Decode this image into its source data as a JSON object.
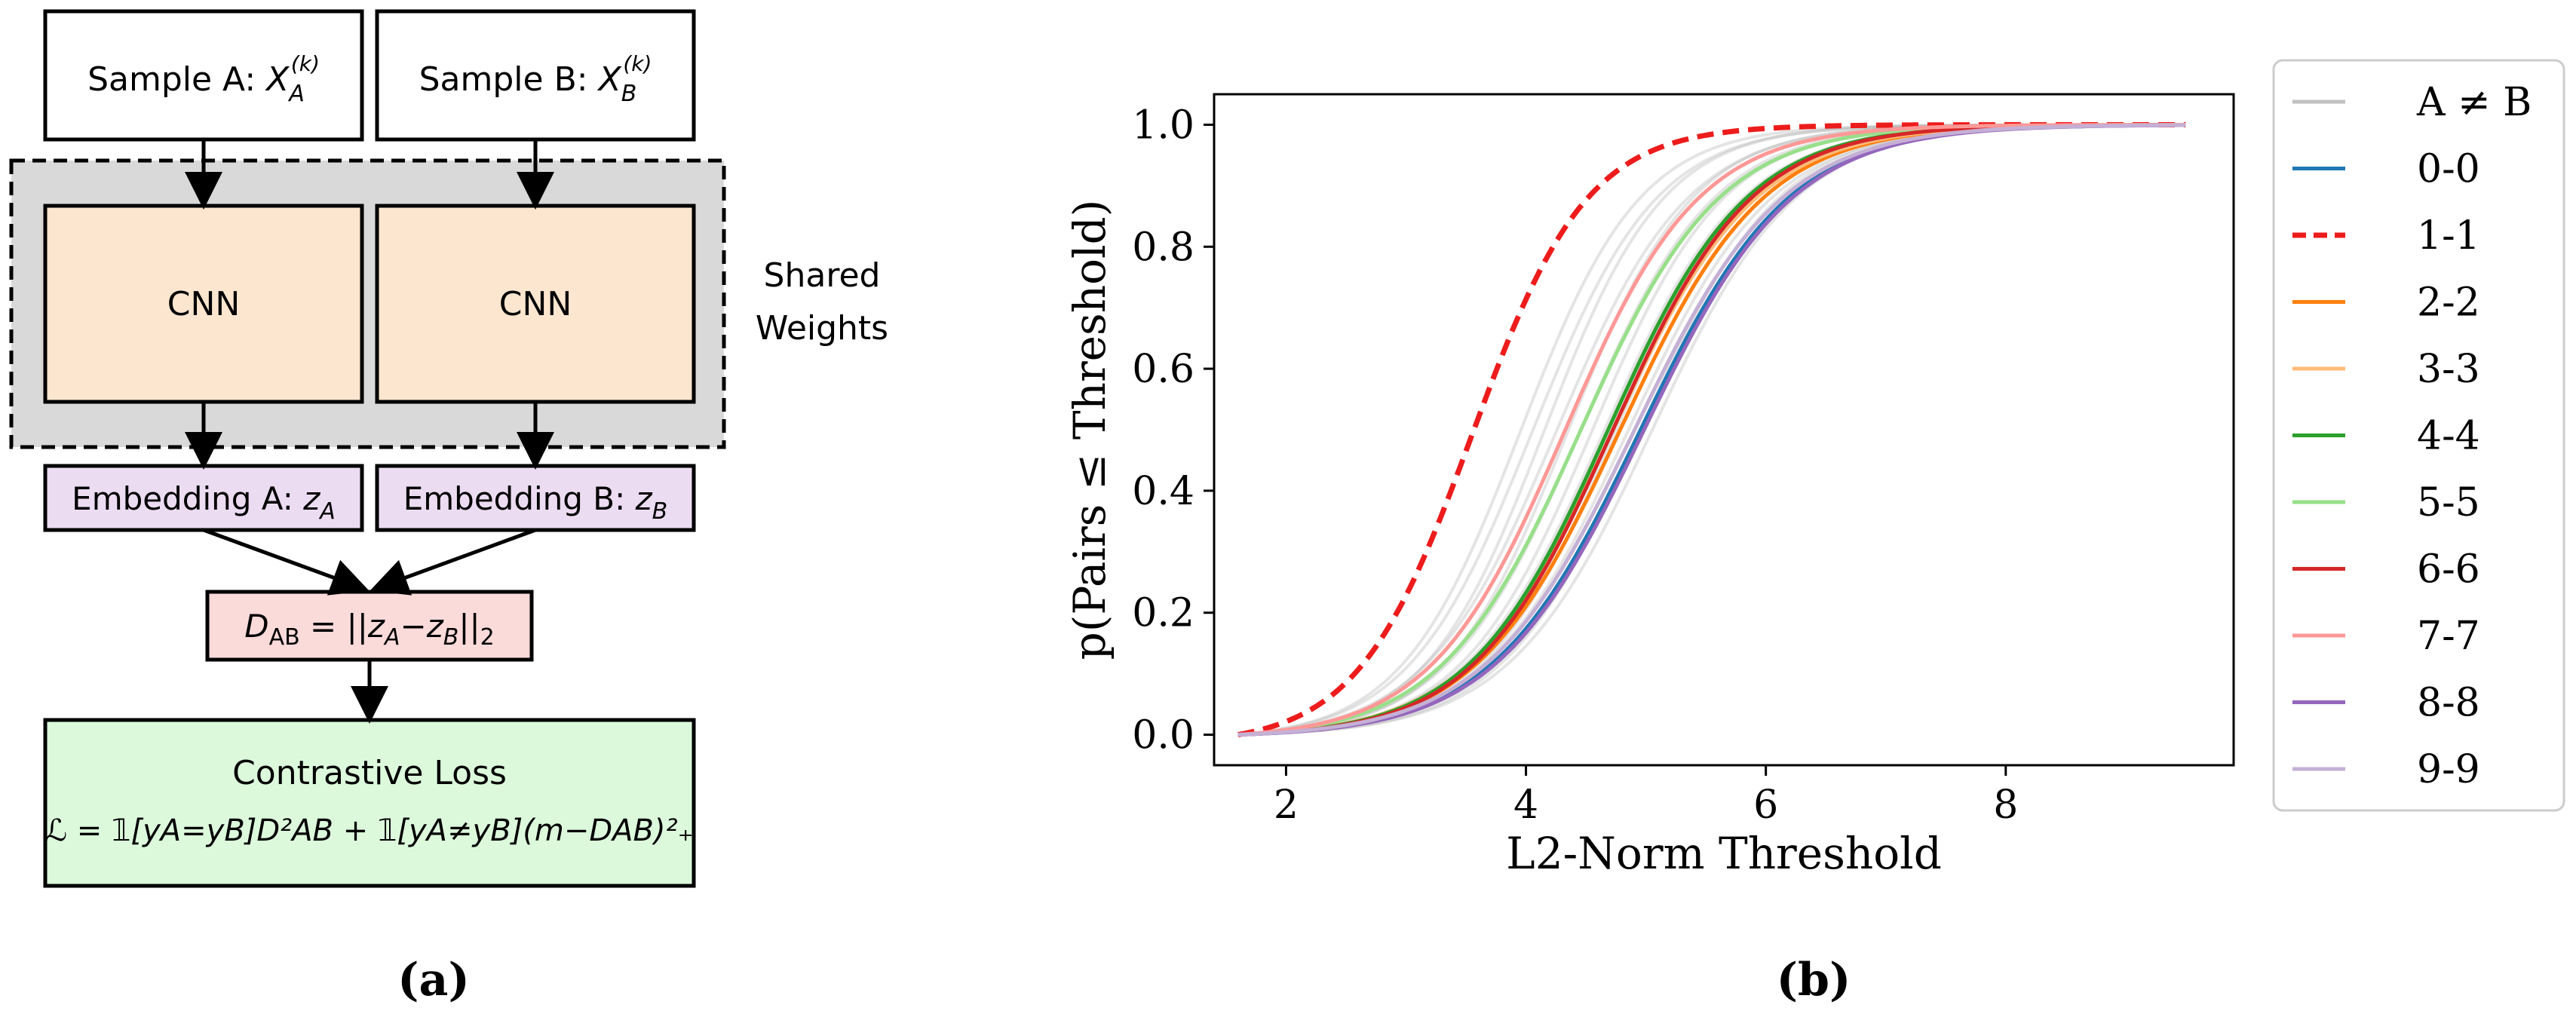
{
  "diagram": {
    "panel_label": "(a)",
    "sample_a": {
      "text": "Sample A: ",
      "var": "X",
      "sub": "A",
      "sup": "(k)"
    },
    "sample_b": {
      "text": "Sample B: ",
      "var": "X",
      "sub": "B",
      "sup": "(k)"
    },
    "cnn_a": "CNN",
    "cnn_b": "CNN",
    "shared_line1": "Shared",
    "shared_line2": "Weights",
    "emb_a": {
      "text": "Embedding A: ",
      "var": "z",
      "sub": "A"
    },
    "emb_b": {
      "text": "Embedding B: ",
      "var": "z",
      "sub": "B"
    },
    "distance": {
      "lhs": "D",
      "lhs_sub": "AB",
      "eq": " = ||",
      "z1": "z",
      "z1_sub": "A",
      "minus": "−",
      "z2": "z",
      "z2_sub": "B",
      "norm_sub": "2"
    },
    "loss_title": "Contrastive Loss",
    "loss_formula": "ℒ = 𝟙[yA=yB]D²AB + 𝟙[yA≠yB](m−DAB)²₊",
    "colors": {
      "sample_fill": "#ffffff",
      "cnn_fill": "#fde6cf",
      "shared_fill": "#d9d9d9",
      "embedding_fill": "#ecdcf2",
      "distance_fill": "#fbdada",
      "loss_fill": "#dcf9dc"
    }
  },
  "chart_data": {
    "panel_label": "(b)",
    "type": "line",
    "xlabel": "L2-Norm Threshold",
    "ylabel": "p(Pairs ≤ Threshold)",
    "xlim": [
      1.4,
      9.9
    ],
    "ylim": [
      -0.05,
      1.05
    ],
    "xticks": [
      2,
      4,
      6,
      8
    ],
    "yticks": [
      0.0,
      0.2,
      0.4,
      0.6,
      0.8,
      1.0
    ],
    "ytick_labels": [
      "0.0",
      "0.2",
      "0.4",
      "0.6",
      "0.8",
      "1.0"
    ],
    "grid": false,
    "legend_position": "outside-right",
    "x_range": [
      1.6,
      9.5
    ],
    "curve_model": "logistic CDF: y = 1 / (1 + exp(-(x - center)/scale))",
    "background_gray": {
      "name": "A ≠ B",
      "color": "#a6a6a6",
      "curves": [
        {
          "center": 3.95,
          "scale": 0.5
        },
        {
          "center": 4.05,
          "scale": 0.52
        },
        {
          "center": 4.15,
          "scale": 0.5
        },
        {
          "center": 4.25,
          "scale": 0.55
        },
        {
          "center": 4.35,
          "scale": 0.52
        },
        {
          "center": 4.45,
          "scale": 0.56
        },
        {
          "center": 4.55,
          "scale": 0.55
        },
        {
          "center": 4.65,
          "scale": 0.58
        },
        {
          "center": 4.75,
          "scale": 0.56
        },
        {
          "center": 4.85,
          "scale": 0.6
        },
        {
          "center": 4.95,
          "scale": 0.58
        },
        {
          "center": 5.05,
          "scale": 0.6
        }
      ]
    },
    "series": [
      {
        "name": "0-0",
        "color": "#1f77b4",
        "dashed": false,
        "center": 4.95,
        "scale": 0.62
      },
      {
        "name": "1-1",
        "color": "#ed1c1c",
        "dashed": true,
        "center": 3.55,
        "scale": 0.48
      },
      {
        "name": "2-2",
        "color": "#ff7f0e",
        "dashed": false,
        "center": 4.78,
        "scale": 0.6
      },
      {
        "name": "3-3",
        "color": "#ffbb78",
        "dashed": false,
        "center": 4.72,
        "scale": 0.6
      },
      {
        "name": "4-4",
        "color": "#2ca02c",
        "dashed": false,
        "center": 4.68,
        "scale": 0.58
      },
      {
        "name": "5-5",
        "color": "#98df8a",
        "dashed": false,
        "center": 4.45,
        "scale": 0.58
      },
      {
        "name": "6-6",
        "color": "#d62728",
        "dashed": false,
        "center": 4.72,
        "scale": 0.58
      },
      {
        "name": "7-7",
        "color": "#ff9896",
        "dashed": false,
        "center": 4.32,
        "scale": 0.56
      },
      {
        "name": "8-8",
        "color": "#9467bd",
        "dashed": false,
        "center": 4.98,
        "scale": 0.62
      },
      {
        "name": "9-9",
        "color": "#c5b0d5",
        "dashed": false,
        "center": 4.9,
        "scale": 0.62
      }
    ]
  }
}
